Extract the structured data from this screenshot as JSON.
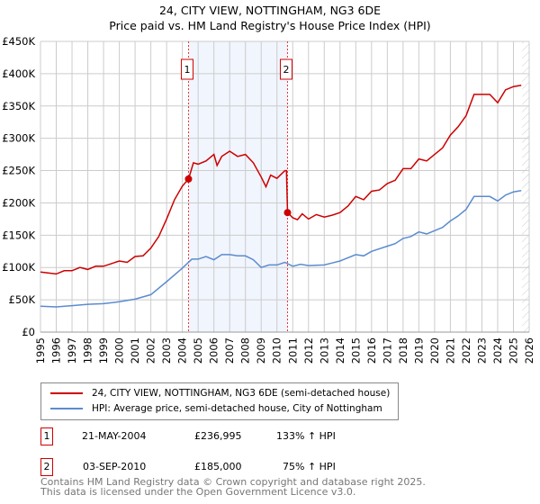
{
  "chart_data": {
    "type": "line",
    "title": "24, CITY VIEW, NOTTINGHAM, NG3 6DE",
    "subtitle": "Price paid vs. HM Land Registry's House Price Index (HPI)",
    "xlim": [
      1995,
      2026
    ],
    "ylim": [
      0,
      450000
    ],
    "y_ticks": [
      {
        "v": 0,
        "label": "£0"
      },
      {
        "v": 50000,
        "label": "£50K"
      },
      {
        "v": 100000,
        "label": "£100K"
      },
      {
        "v": 150000,
        "label": "£150K"
      },
      {
        "v": 200000,
        "label": "£200K"
      },
      {
        "v": 250000,
        "label": "£250K"
      },
      {
        "v": 300000,
        "label": "£300K"
      },
      {
        "v": 350000,
        "label": "£350K"
      },
      {
        "v": 400000,
        "label": "£400K"
      },
      {
        "v": 450000,
        "label": "£450K"
      }
    ],
    "x_ticks": [
      "1995",
      "1996",
      "1997",
      "1998",
      "1999",
      "2000",
      "2001",
      "2002",
      "2003",
      "2004",
      "2005",
      "2006",
      "2007",
      "2008",
      "2009",
      "2010",
      "2011",
      "2012",
      "2013",
      "2014",
      "2015",
      "2016",
      "2017",
      "2018",
      "2019",
      "2020",
      "2021",
      "2022",
      "2023",
      "2024",
      "2025",
      "2026"
    ],
    "grid": true,
    "series": [
      {
        "name": "24, CITY VIEW, NOTTINGHAM, NG3 6DE (semi-detached house)",
        "color": "#cc0000",
        "x": [
          1995,
          1996,
          1996.5,
          1997,
          1997.5,
          1998,
          1998.5,
          1999,
          1999.5,
          2000,
          2000.5,
          2001,
          2001.5,
          2002,
          2002.5,
          2003,
          2003.5,
          2004,
          2004.39,
          2004.7,
          2005,
          2005.5,
          2006,
          2006.2,
          2006.5,
          2007,
          2007.5,
          2008,
          2008.5,
          2009,
          2009.3,
          2009.6,
          2010,
          2010.5,
          2010.6,
          2010.67,
          2011,
          2011.3,
          2011.6,
          2012,
          2012.5,
          2013,
          2013.5,
          2014,
          2014.5,
          2015,
          2015.5,
          2016,
          2016.5,
          2017,
          2017.5,
          2018,
          2018.5,
          2019,
          2019.5,
          2020,
          2020.5,
          2021,
          2021.5,
          2022,
          2022.5,
          2023,
          2023.5,
          2024,
          2024.5,
          2025,
          2025.5
        ],
        "y": [
          93,
          90,
          95,
          95,
          100,
          97,
          102,
          102,
          106,
          110,
          108,
          117,
          118,
          130,
          148,
          175,
          205,
          226,
          237,
          262,
          260,
          265,
          275,
          258,
          272,
          280,
          272,
          275,
          262,
          240,
          225,
          243,
          238,
          250,
          250,
          185,
          177,
          174,
          183,
          175,
          182,
          178,
          181,
          185,
          195,
          210,
          205,
          218,
          220,
          230,
          235,
          253,
          253,
          268,
          265,
          275,
          285,
          305,
          318,
          335,
          368,
          368,
          368,
          355,
          375,
          380,
          382
        ],
        "y_unit": "£K"
      },
      {
        "name": "HPI: Average price, semi-detached house, City of Nottingham",
        "color": "#5b8bd0",
        "x": [
          1995,
          1996,
          1997,
          1998,
          1999,
          2000,
          2001,
          2002,
          2003,
          2004,
          2004.6,
          2005,
          2005.5,
          2006,
          2006.5,
          2007,
          2007.5,
          2008,
          2008.5,
          2009,
          2009.5,
          2010,
          2010.5,
          2011,
          2011.5,
          2012,
          2013,
          2013.5,
          2014,
          2015,
          2015.5,
          2016,
          2017,
          2017.5,
          2018,
          2018.5,
          2019,
          2019.5,
          2020,
          2020.5,
          2021,
          2021.5,
          2022,
          2022.5,
          2023,
          2023.5,
          2024,
          2024.5,
          2025,
          2025.5
        ],
        "y": [
          40,
          39,
          41,
          43,
          44,
          47,
          51,
          58,
          78,
          99,
          113,
          113,
          117,
          112,
          120,
          120,
          118,
          118,
          112,
          100,
          104,
          104,
          108,
          102,
          105,
          103,
          104,
          107,
          110,
          120,
          118,
          125,
          133,
          137,
          145,
          148,
          155,
          152,
          157,
          162,
          172,
          180,
          190,
          210,
          210,
          210,
          203,
          212,
          217,
          219
        ],
        "y_unit": "£K"
      }
    ],
    "annotations": [
      {
        "id": "1",
        "x": 2004.39,
        "y": 236995,
        "date": "21-MAY-2004",
        "price": "£236,995",
        "hpi": "133% ↑ HPI"
      },
      {
        "id": "2",
        "x": 2010.67,
        "y": 185000,
        "date": "03-SEP-2010",
        "price": "£185,000",
        "hpi": "75% ↑ HPI"
      }
    ],
    "legend_placement": "below"
  },
  "footer": {
    "line1": "Contains HM Land Registry data © Crown copyright and database right 2025.",
    "line2": "This data is licensed under the Open Government Licence v3.0."
  }
}
